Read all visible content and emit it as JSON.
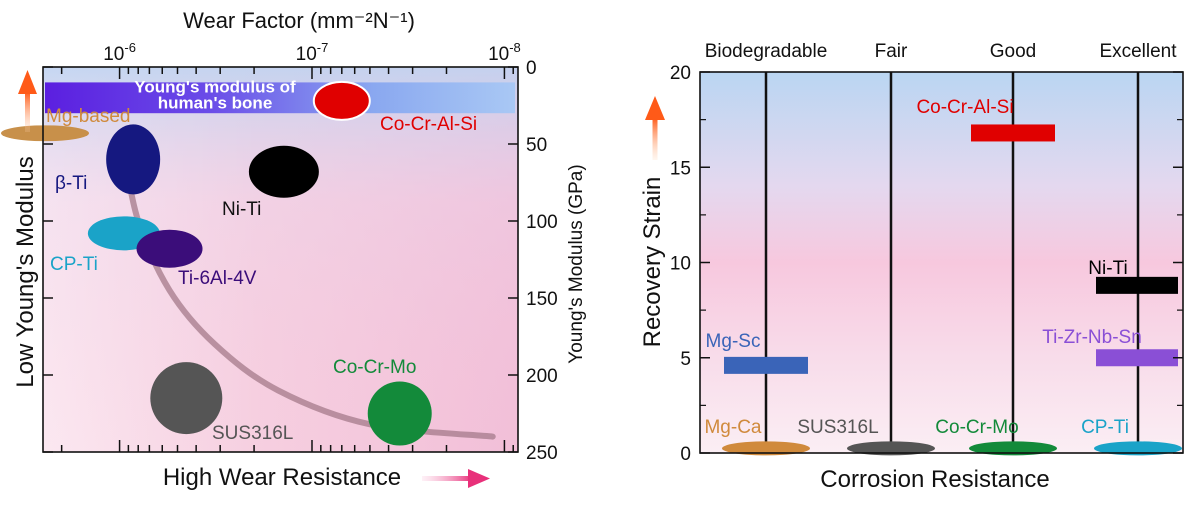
{
  "chart_data": [
    {
      "type": "scatter",
      "x_title": "Wear Factor (mm⁻²N⁻¹)",
      "x_scale": "log",
      "x_ticks": [
        {
          "value": 1e-06,
          "base": "10",
          "exp": "-6"
        },
        {
          "value": 1e-07,
          "base": "10",
          "exp": "-7"
        },
        {
          "value": 1e-08,
          "base": "10",
          "exp": "-8"
        }
      ],
      "xlim": [
        2.5e-06,
        8.5e-09
      ],
      "ylabel": "Young's Modulus (GPa)",
      "ylim": [
        0,
        250
      ],
      "y_ticks": [
        0,
        50,
        100,
        150,
        200,
        250
      ],
      "left_label": "Low Young's Modulus",
      "bottom_label": "High Wear Resistance",
      "bone_band": {
        "label_line1": "Young's modulus of",
        "label_line2": "human's bone",
        "y_range": [
          10,
          30
        ]
      },
      "trend_curve": [
        {
          "x": 9.5e-07,
          "y": 55
        },
        {
          "x": 8e-07,
          "y": 100
        },
        {
          "x": 5.5e-07,
          "y": 145
        },
        {
          "x": 3.2e-07,
          "y": 180
        },
        {
          "x": 1.5e-07,
          "y": 210
        },
        {
          "x": 5e-08,
          "y": 232
        },
        {
          "x": 1.15e-08,
          "y": 240
        }
      ],
      "points": [
        {
          "name": "Mg-based",
          "x": 2.2e-06,
          "y": 43,
          "rx": 4.5e-07,
          "ry": 4,
          "color": "#c8904a",
          "label_color": "#d08a3c"
        },
        {
          "name": "β-Ti",
          "x": 8.5e-07,
          "y": 60,
          "color": "#151880",
          "label_color": "#151880"
        },
        {
          "name": "Ni-Ti",
          "x": 1.4e-07,
          "y": 68,
          "color": "#000000",
          "label_color": "#111111"
        },
        {
          "name": "CP-Ti",
          "x": 9.5e-07,
          "y": 108,
          "color": "#1aa3c8",
          "label_color": "#1aa3c8"
        },
        {
          "name": "Ti-6Al-4V",
          "x": 5.5e-07,
          "y": 118,
          "color": "#3b0d7a",
          "label_color": "#3b0d7a"
        },
        {
          "name": "Co-Cr-Al-Si",
          "x": 7e-08,
          "y": 22,
          "color": "#e00000",
          "label_color": "#e00000"
        },
        {
          "name": "SUS316L",
          "x": 4.5e-07,
          "y": 215,
          "color": "#555555",
          "label_color": "#555555"
        },
        {
          "name": "Co-Cr-Mo",
          "x": 3.5e-08,
          "y": 225,
          "color": "#138a3a",
          "label_color": "#138a3a"
        }
      ]
    },
    {
      "type": "bar",
      "xlabel": "Corrosion Resistance",
      "ylabel": "Recovery Strain",
      "ylim": [
        0,
        20
      ],
      "y_ticks": [
        0,
        5,
        10,
        15,
        20
      ],
      "categories": [
        "Biodegradable",
        "Fair",
        "Good",
        "Excellent"
      ],
      "bars": [
        {
          "name": "Mg-Ca",
          "category": 0,
          "value": 0.4,
          "shape": "ellipse",
          "color": "#d08a3c"
        },
        {
          "name": "Mg-Sc",
          "category": 0,
          "value": 4.6,
          "shape": "bar",
          "color": "#3a64b8"
        },
        {
          "name": "SUS316L",
          "category": 1,
          "value": 0.4,
          "shape": "ellipse",
          "color": "#555555"
        },
        {
          "name": "Co-Cr-Mo",
          "category": 2,
          "value": 0.4,
          "shape": "ellipse",
          "color": "#138a3a"
        },
        {
          "name": "Co-Cr-Al-Si",
          "category": 2,
          "value": 16.8,
          "shape": "bar",
          "color": "#e00000"
        },
        {
          "name": "CP-Ti",
          "category": 3,
          "value": 0.4,
          "shape": "ellipse",
          "color": "#1aa3c8"
        },
        {
          "name": "Ti-Zr-Nb-Sn",
          "category": 3,
          "value": 5.0,
          "shape": "bar",
          "color": "#8a4fd6"
        },
        {
          "name": "Ni-Ti",
          "category": 3,
          "value": 8.8,
          "shape": "bar",
          "color": "#000000"
        }
      ]
    }
  ]
}
